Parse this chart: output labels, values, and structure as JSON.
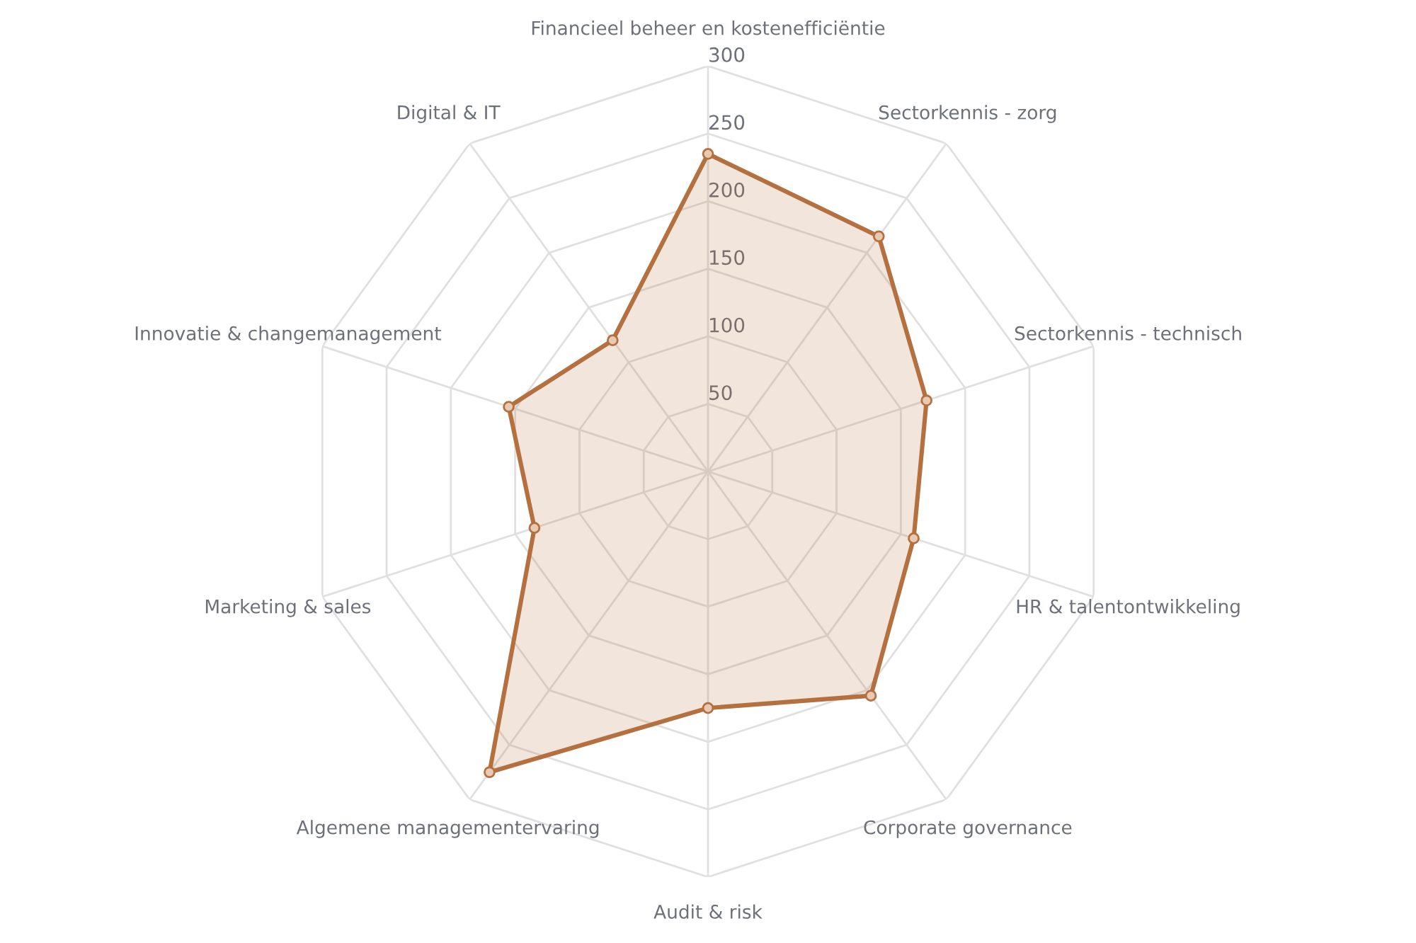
{
  "chart_data": {
    "type": "radar",
    "categories": [
      "Financieel beheer en kostenefficiëntie",
      "Sectorkennis - zorg",
      "Sectorkennis - technisch",
      "HR & talentontwikkeling",
      "Corporate governance",
      "Audit & risk",
      "Algemene managementervaring",
      "Marketing & sales",
      "Innovatie & changemanagement",
      "Digital & IT"
    ],
    "series": [
      {
        "color": "#b5703f",
        "values": [
          235,
          215,
          170,
          160,
          205,
          175,
          275,
          135,
          155,
          120
        ]
      }
    ],
    "ylim": [
      0,
      300
    ],
    "yticks": [
      50,
      100,
      150,
      200,
      250,
      300
    ],
    "grid": true,
    "marker": "circle"
  }
}
